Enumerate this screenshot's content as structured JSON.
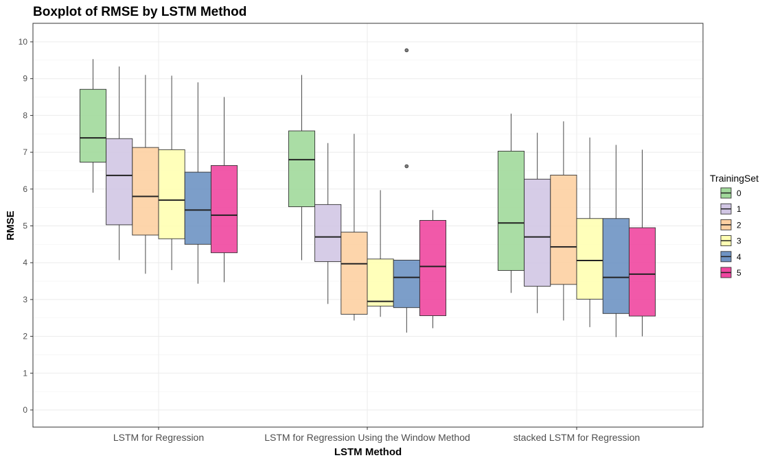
{
  "chart_data": {
    "type": "boxplot",
    "title": "Boxplot of RMSE by LSTM Method",
    "xlabel": "LSTM Method",
    "ylabel": "RMSE",
    "ylim": [
      -0.5,
      10.5
    ],
    "y_ticks": [
      "0",
      "1",
      "2",
      "3",
      "4",
      "5",
      "6",
      "7",
      "8",
      "9",
      "10"
    ],
    "grid": true,
    "legend_position": "right",
    "legend_title": "TrainingSet",
    "categories": [
      "LSTM for Regression",
      "LSTM for Regression Using the Window Method",
      "stacked LSTM for Regression"
    ],
    "series": [
      {
        "name": "0",
        "color": "#a1d99b",
        "boxes": [
          {
            "min": 5.9,
            "q1": 6.73,
            "median": 7.39,
            "q3": 8.71,
            "max": 9.53,
            "outliers": []
          },
          {
            "min": 4.07,
            "q1": 5.52,
            "median": 6.8,
            "q3": 7.58,
            "max": 9.1,
            "outliers": []
          },
          {
            "min": 3.18,
            "q1": 3.79,
            "median": 5.08,
            "q3": 7.03,
            "max": 8.05,
            "outliers": []
          }
        ]
      },
      {
        "name": "1",
        "color": "#d1c6e4",
        "boxes": [
          {
            "min": 4.07,
            "q1": 5.03,
            "median": 6.37,
            "q3": 7.37,
            "max": 9.33,
            "outliers": []
          },
          {
            "min": 2.88,
            "q1": 4.03,
            "median": 4.7,
            "q3": 5.58,
            "max": 7.25,
            "outliers": []
          },
          {
            "min": 2.63,
            "q1": 3.36,
            "median": 4.7,
            "q3": 6.27,
            "max": 7.53,
            "outliers": []
          }
        ]
      },
      {
        "name": "2",
        "color": "#fdd0a2",
        "boxes": [
          {
            "min": 3.7,
            "q1": 4.75,
            "median": 5.8,
            "q3": 7.13,
            "max": 9.1,
            "outliers": []
          },
          {
            "min": 2.43,
            "q1": 2.6,
            "median": 3.97,
            "q3": 4.83,
            "max": 7.5,
            "outliers": []
          },
          {
            "min": 2.43,
            "q1": 3.41,
            "median": 4.43,
            "q3": 6.38,
            "max": 7.84,
            "outliers": []
          }
        ]
      },
      {
        "name": "3",
        "color": "#ffffb3",
        "boxes": [
          {
            "min": 3.8,
            "q1": 4.65,
            "median": 5.7,
            "q3": 7.07,
            "max": 9.08,
            "outliers": []
          },
          {
            "min": 2.53,
            "q1": 2.82,
            "median": 2.95,
            "q3": 4.1,
            "max": 5.97,
            "outliers": []
          },
          {
            "min": 2.25,
            "q1": 3.01,
            "median": 4.06,
            "q3": 5.2,
            "max": 7.4,
            "outliers": []
          }
        ]
      },
      {
        "name": "4",
        "color": "#6e93c3",
        "boxes": [
          {
            "min": 3.43,
            "q1": 4.5,
            "median": 5.43,
            "q3": 6.46,
            "max": 8.9,
            "outliers": []
          },
          {
            "min": 2.1,
            "q1": 2.78,
            "median": 3.6,
            "q3": 4.07,
            "max": 4.07,
            "outliers": [
              6.62,
              9.77
            ]
          },
          {
            "min": 1.98,
            "q1": 2.62,
            "median": 3.6,
            "q3": 5.2,
            "max": 7.2,
            "outliers": []
          }
        ]
      },
      {
        "name": "5",
        "color": "#f047a0",
        "boxes": [
          {
            "min": 3.47,
            "q1": 4.27,
            "median": 5.29,
            "q3": 6.64,
            "max": 8.5,
            "outliers": []
          },
          {
            "min": 2.22,
            "q1": 2.56,
            "median": 3.9,
            "q3": 5.15,
            "max": 5.43,
            "outliers": []
          },
          {
            "min": 2.0,
            "q1": 2.55,
            "median": 3.69,
            "q3": 4.95,
            "max": 7.07,
            "outliers": []
          }
        ]
      }
    ]
  }
}
